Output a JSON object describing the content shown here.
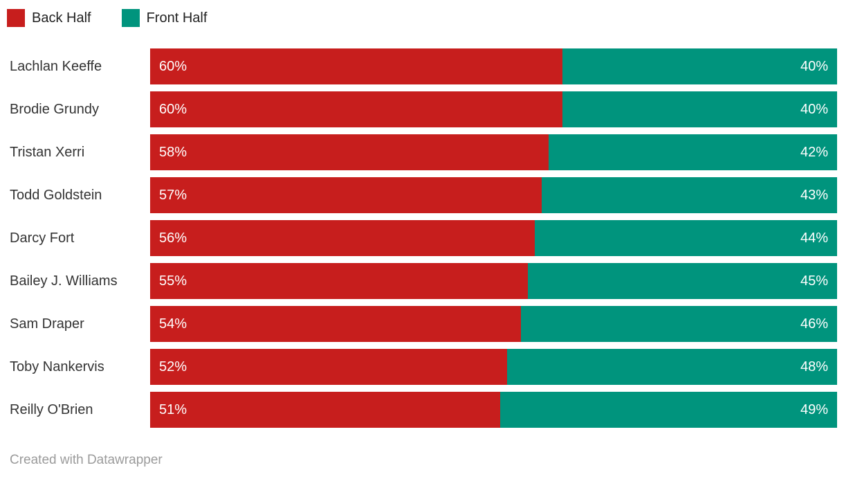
{
  "legend": {
    "items": [
      {
        "label": "Back Half",
        "color": "#c71e1d"
      },
      {
        "label": "Front Half",
        "color": "#00947d"
      }
    ]
  },
  "chart_data": {
    "type": "bar",
    "orientation": "horizontal",
    "stacked": true,
    "stack_total": 100,
    "value_suffix": "%",
    "grid": false,
    "legend_position": "top-left",
    "xlim": [
      0,
      100
    ],
    "categories": [
      "Lachlan Keeffe",
      "Brodie Grundy",
      "Tristan Xerri",
      "Todd Goldstein",
      "Darcy Fort",
      "Bailey J. Williams",
      "Sam Draper",
      "Toby Nankervis",
      "Reilly O'Brien"
    ],
    "series": [
      {
        "name": "Back Half",
        "color": "#c71e1d",
        "values": [
          60,
          60,
          58,
          57,
          56,
          55,
          54,
          52,
          51
        ]
      },
      {
        "name": "Front Half",
        "color": "#00947d",
        "values": [
          40,
          40,
          42,
          43,
          44,
          45,
          46,
          48,
          49
        ]
      }
    ]
  },
  "footer": {
    "attribution": "Created with Datawrapper"
  }
}
